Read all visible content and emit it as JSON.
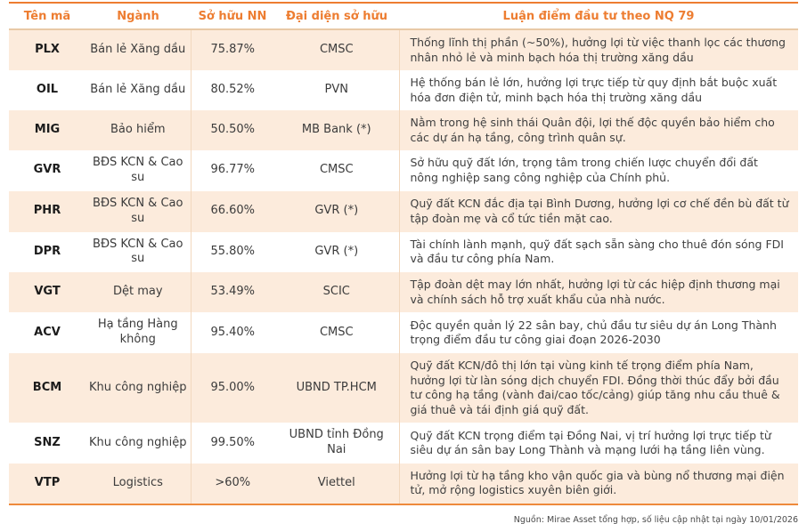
{
  "table": {
    "columns": [
      {
        "key": "ticker",
        "label": "Tên mã"
      },
      {
        "key": "industry",
        "label": "Ngành"
      },
      {
        "key": "state_ownership",
        "label": "Sở hữu NN"
      },
      {
        "key": "representative",
        "label": "Đại diện sở hữu"
      },
      {
        "key": "thesis",
        "label": "Luận điểm đầu tư theo NQ 79"
      }
    ],
    "rows": [
      {
        "ticker": "PLX",
        "industry": "Bán lẻ Xăng dầu",
        "state_ownership": "75.87%",
        "representative": "CMSC",
        "thesis": "Thống lĩnh thị phần (~50%), hưởng lợi từ việc thanh lọc các thương nhân nhỏ lẻ và minh bạch hóa thị trường xăng dầu"
      },
      {
        "ticker": "OIL",
        "industry": "Bán lẻ Xăng dầu",
        "state_ownership": "80.52%",
        "representative": "PVN",
        "thesis": "Hệ thống bán lẻ lớn, hưởng lợi trực tiếp từ quy định bắt buộc xuất hóa đơn điện tử, minh bạch hóa thị trường xăng dầu"
      },
      {
        "ticker": "MIG",
        "industry": "Bảo hiểm",
        "state_ownership": "50.50%",
        "representative": "MB Bank (*)",
        "thesis": "Nằm trong hệ sinh thái Quân đội, lợi thế độc quyền bảo hiểm cho các dự án hạ tầng, công trình quân sự."
      },
      {
        "ticker": "GVR",
        "industry": "BĐS KCN & Cao su",
        "state_ownership": "96.77%",
        "representative": "CMSC",
        "thesis": "Sở hữu quỹ đất lớn, trọng tâm trong chiến lược chuyển đổi đất nông nghiệp sang công nghiệp của Chính phủ."
      },
      {
        "ticker": "PHR",
        "industry": "BĐS KCN & Cao su",
        "state_ownership": "66.60%",
        "representative": "GVR (*)",
        "thesis": "Quỹ đất KCN đắc địa tại Bình Dương, hưởng lợi cơ chế đền bù đất từ tập đoàn mẹ và cổ tức tiền mặt cao."
      },
      {
        "ticker": "DPR",
        "industry": "BĐS KCN & Cao su",
        "state_ownership": "55.80%",
        "representative": "GVR (*)",
        "thesis": "Tài chính lành mạnh, quỹ đất sạch sẵn sàng cho thuê đón sóng FDI và đầu tư công phía Nam."
      },
      {
        "ticker": "VGT",
        "industry": "Dệt may",
        "state_ownership": "53.49%",
        "representative": "SCIC",
        "thesis": "Tập đoàn dệt may lớn nhất, hưởng lợi từ các hiệp định thương mại và chính sách hỗ trợ xuất khẩu của nhà nước."
      },
      {
        "ticker": "ACV",
        "industry": "Hạ tầng Hàng không",
        "state_ownership": "95.40%",
        "representative": "CMSC",
        "thesis": "Độc quyền quản lý 22 sân bay, chủ đầu tư siêu dự án Long Thành trọng điểm đầu tư công giai đoạn 2026-2030"
      },
      {
        "ticker": "BCM",
        "industry": "Khu công nghiệp",
        "state_ownership": "95.00%",
        "representative": "UBND TP.HCM",
        "thesis": "Quỹ đất KCN/đô thị lớn tại vùng kinh tế trọng điểm phía Nam, hưởng lợi từ làn sóng dịch chuyển FDI. Đồng thời thúc đẩy bởi đầu tư công hạ tầng (vành đai/cao tốc/cảng) giúp tăng nhu cầu thuê & giá thuê và tái định giá quỹ đất."
      },
      {
        "ticker": "SNZ",
        "industry": "Khu công nghiệp",
        "state_ownership": "99.50%",
        "representative": "UBND tỉnh Đồng Nai",
        "thesis": "Quỹ đất KCN trọng điểm tại Đồng Nai, vị trí hưởng lợi trực tiếp từ siêu dự án sân bay Long Thành và mạng lưới hạ tầng liên vùng."
      },
      {
        "ticker": "VTP",
        "industry": "Logistics",
        "state_ownership": ">60%",
        "representative": "Viettel",
        "thesis": "Hưởng lợi từ hạ tầng kho vận quốc gia và bùng nổ thương mại điện tử, mở rộng logistics xuyên biên giới."
      }
    ]
  },
  "footer": {
    "source_note": "Nguồn: Mirae Asset tổng hợp, số liệu cập nhật tại ngày 10/01/2026"
  },
  "colors": {
    "accent_orange": "#ED7D31",
    "row_stripe_peach": "#FCEBDC",
    "header_underline_tan": "#E8C9A6",
    "body_text": "#404040"
  }
}
